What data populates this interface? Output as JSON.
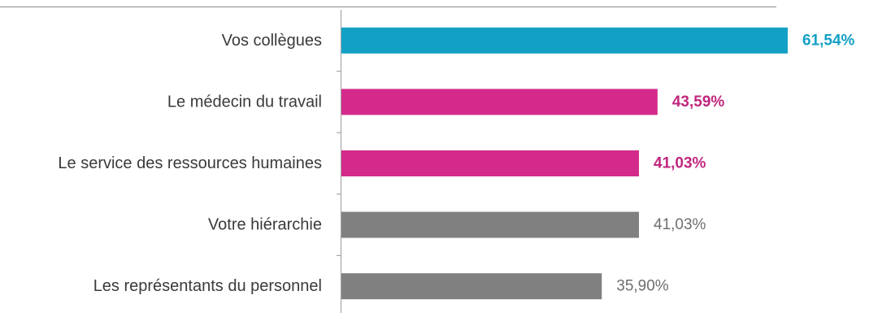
{
  "chart_data": {
    "type": "bar",
    "orientation": "horizontal",
    "categories": [
      "Vos collègues",
      "Le médecin du travail",
      "Le service des ressources humaines",
      "Votre hiérarchie",
      "Les représentants du personnel"
    ],
    "values": [
      61.54,
      43.59,
      41.03,
      41.03,
      35.9
    ],
    "value_labels": [
      "61,54%",
      "43,59%",
      "41,03%",
      "41,03%",
      "35,90%"
    ],
    "bar_colors": [
      "#13a0c5",
      "#d42a8b",
      "#d42a8b",
      "#808080",
      "#808080"
    ],
    "label_colors": [
      "#13a0c5",
      "#c0267e",
      "#c0267e",
      "#6e6e6e",
      "#6e6e6e"
    ],
    "label_bold": [
      true,
      true,
      true,
      false,
      false
    ],
    "xlim": [
      0,
      61.54
    ],
    "title": "",
    "xlabel": "",
    "ylabel": "",
    "grid": false,
    "legend": "none"
  }
}
